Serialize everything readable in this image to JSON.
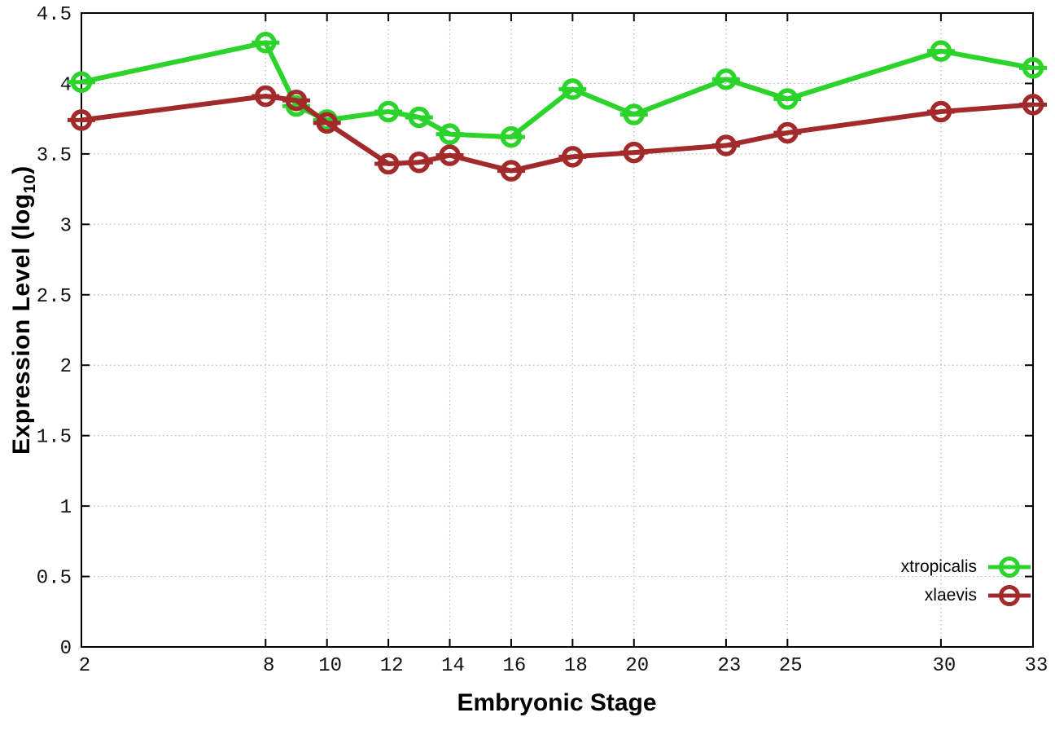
{
  "chart_data": {
    "type": "line",
    "xlabel": "Embryonic Stage",
    "ylabel_main": "Expression Level (log",
    "ylabel_sub": "10",
    "ylabel_close": ")",
    "xlim": [
      2,
      33
    ],
    "ylim": [
      0,
      4.5
    ],
    "grid": true,
    "legend_position": "bottom-right-inside",
    "marker": "open-circle-with-errorbar-dash",
    "background_color": "#ffffff",
    "grid_color": "#b8b8b8",
    "border_color": "#000000",
    "tick_label_color": "#111111",
    "x_ticks": {
      "values": [
        2,
        8,
        10,
        12,
        14,
        16,
        18,
        20,
        23,
        25,
        30,
        33
      ],
      "labels": [
        "2",
        "8",
        "10",
        "12",
        "14",
        "16",
        "18",
        "20",
        "23",
        "25",
        "30",
        "33"
      ]
    },
    "y_ticks": {
      "values": [
        0,
        0.5,
        1,
        1.5,
        2,
        2.5,
        3,
        3.5,
        4,
        4.5
      ],
      "labels": [
        "0",
        "0.5",
        "1",
        "1.5",
        "2",
        "2.5",
        "3",
        "3.5",
        "4",
        "4.5"
      ]
    },
    "x": [
      2,
      8,
      9,
      10,
      12,
      13,
      14,
      16,
      18,
      20,
      23,
      25,
      30,
      33
    ],
    "series": [
      {
        "name": "xtropicalis",
        "color": "#2bd32b",
        "values": [
          4.01,
          4.29,
          3.84,
          3.74,
          3.8,
          3.76,
          3.64,
          3.62,
          3.96,
          3.78,
          4.03,
          3.89,
          4.23,
          4.11
        ]
      },
      {
        "name": "xlaevis",
        "color": "#a32a2a",
        "values": [
          3.74,
          3.91,
          3.88,
          3.72,
          3.43,
          3.44,
          3.49,
          3.38,
          3.48,
          3.51,
          3.56,
          3.65,
          3.8,
          3.85
        ]
      }
    ]
  }
}
